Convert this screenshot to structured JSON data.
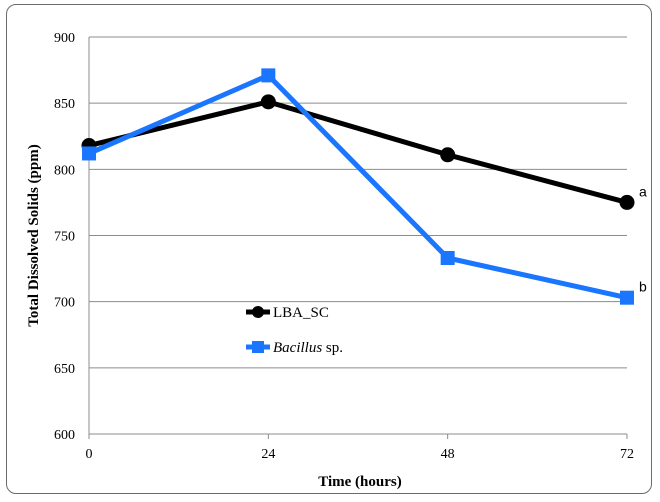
{
  "chart_data": {
    "type": "line",
    "xlabel": "Time (hours)",
    "ylabel": "Total Dissolved Solids (ppm)",
    "x": [
      0,
      24,
      48,
      72
    ],
    "xlim": [
      0,
      72
    ],
    "ylim": [
      600,
      900
    ],
    "yticks": [
      600,
      650,
      700,
      750,
      800,
      850,
      900
    ],
    "xticks": [
      0,
      24,
      48,
      72
    ],
    "grid": "horizontal",
    "legend_placement": "center",
    "series": [
      {
        "name": "LBA_SC",
        "legend_main": "LBA_SC",
        "legend_suffix": "",
        "values": [
          818,
          851,
          811,
          775
        ],
        "color": "#000000",
        "marker": "circle",
        "annotation": "a"
      },
      {
        "name": "Bacillus sp.",
        "legend_main": "Bacillus",
        "legend_suffix": " sp.",
        "values": [
          812,
          871,
          733,
          703
        ],
        "color": "#1a75ff",
        "marker": "square",
        "annotation": "b"
      }
    ]
  }
}
